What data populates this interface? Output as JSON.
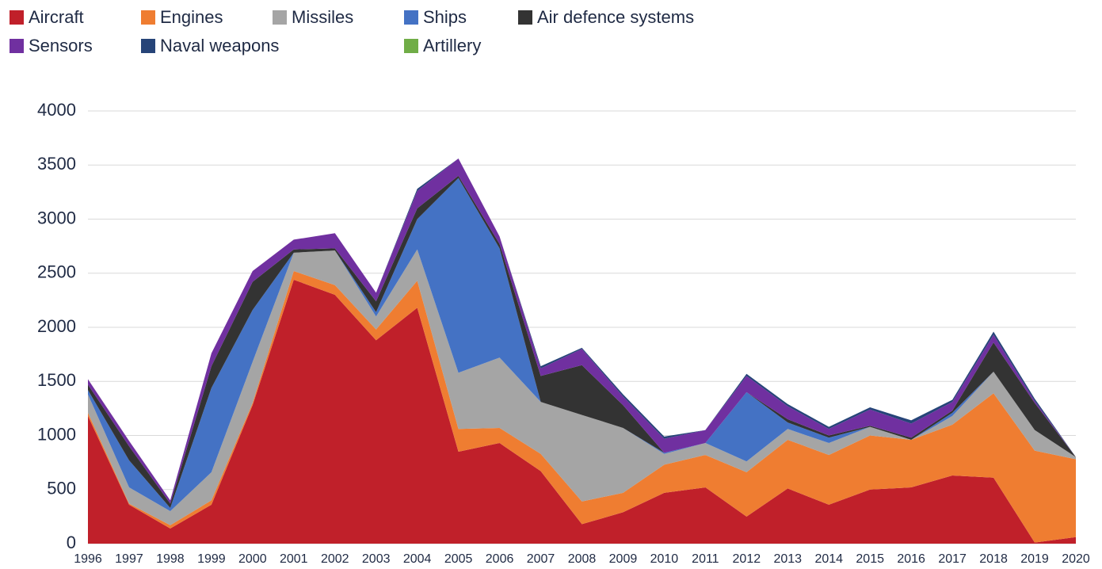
{
  "chart_data": {
    "type": "stacked_area",
    "categories": [
      "1996",
      "1997",
      "1998",
      "1999",
      "2000",
      "2001",
      "2002",
      "2003",
      "2004",
      "2005",
      "2006",
      "2007",
      "2008",
      "2009",
      "2010",
      "2011",
      "2012",
      "2013",
      "2014",
      "2015",
      "2016",
      "2017",
      "2018",
      "2019",
      "2020"
    ],
    "series": [
      {
        "name": "Aircraft",
        "color": "#c0202a",
        "values": [
          1180,
          360,
          140,
          360,
          1280,
          2440,
          2300,
          1880,
          2180,
          850,
          930,
          670,
          180,
          290,
          470,
          520,
          250,
          510,
          360,
          500,
          520,
          630,
          610,
          10,
          60
        ]
      },
      {
        "name": "Engines",
        "color": "#ef7d31",
        "values": [
          30,
          10,
          30,
          40,
          20,
          80,
          90,
          100,
          250,
          210,
          140,
          160,
          210,
          180,
          260,
          300,
          410,
          450,
          460,
          500,
          440,
          470,
          780,
          850,
          720
        ]
      },
      {
        "name": "Missiles",
        "color": "#a5a5a5",
        "values": [
          170,
          150,
          130,
          260,
          380,
          170,
          320,
          120,
          290,
          520,
          650,
          480,
          800,
          600,
          100,
          110,
          100,
          100,
          110,
          80,
          0,
          80,
          200,
          190,
          20
        ]
      },
      {
        "name": "Ships",
        "color": "#4472c4",
        "values": [
          40,
          250,
          30,
          780,
          480,
          0,
          0,
          40,
          280,
          1800,
          1010,
          0,
          0,
          0,
          10,
          0,
          640,
          60,
          50,
          0,
          0,
          30,
          0,
          0,
          0
        ]
      },
      {
        "name": "Air defence systems",
        "color": "#333333",
        "values": [
          50,
          130,
          40,
          200,
          260,
          30,
          20,
          100,
          100,
          20,
          40,
          240,
          460,
          210,
          0,
          0,
          0,
          30,
          20,
          10,
          20,
          20,
          270,
          250,
          0
        ]
      },
      {
        "name": "Sensors",
        "color": "#7030a0",
        "values": [
          50,
          50,
          30,
          120,
          100,
          90,
          140,
          80,
          160,
          160,
          70,
          70,
          150,
          80,
          130,
          120,
          150,
          120,
          60,
          150,
          130,
          80,
          70,
          20,
          0
        ]
      },
      {
        "name": "Naval weapons",
        "color": "#264478",
        "values": [
          0,
          0,
          0,
          0,
          0,
          0,
          0,
          0,
          20,
          0,
          0,
          20,
          10,
          20,
          20,
          0,
          20,
          20,
          20,
          20,
          30,
          20,
          30,
          20,
          0
        ]
      },
      {
        "name": "Artillery",
        "color": "#70ad47",
        "values": [
          0,
          0,
          0,
          0,
          0,
          0,
          0,
          0,
          0,
          0,
          0,
          0,
          0,
          0,
          0,
          0,
          0,
          0,
          0,
          0,
          0,
          0,
          0,
          0,
          0
        ]
      }
    ],
    "ylim": [
      0,
      4000
    ],
    "yticks": [
      0,
      500,
      1000,
      1500,
      2000,
      2500,
      3000,
      3500,
      4000
    ],
    "grid": true
  }
}
